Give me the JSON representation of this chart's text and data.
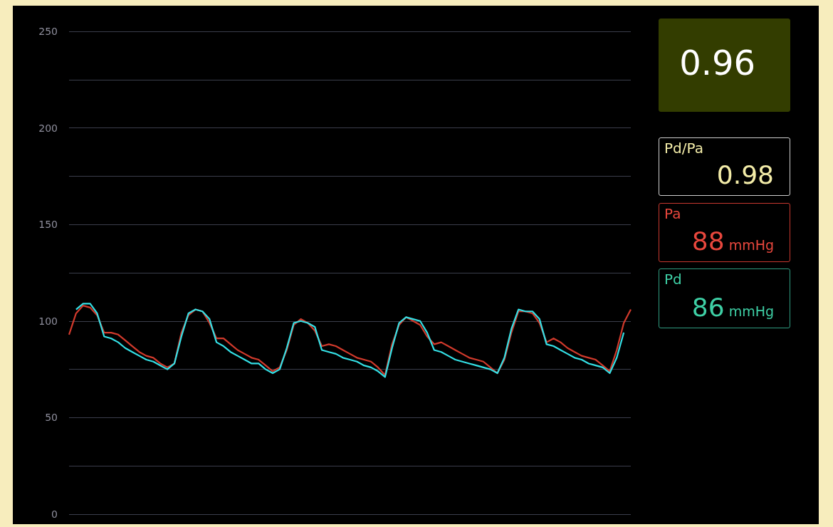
{
  "chart_data": [
    {
      "type": "line",
      "categories": [
        null,
        null,
        null,
        null,
        null,
        null,
        null,
        null,
        null,
        null,
        null,
        null,
        null,
        null,
        null,
        null,
        null,
        null,
        null,
        null,
        null,
        null,
        null,
        null,
        null,
        null,
        null,
        null,
        null,
        null,
        null,
        null,
        null,
        null,
        null,
        null,
        null,
        null,
        null,
        null,
        null,
        null,
        null,
        null,
        null,
        null,
        null,
        null,
        null,
        null,
        null,
        null,
        null,
        null,
        null,
        null,
        null,
        null,
        null,
        null,
        null,
        null,
        null,
        null,
        null,
        null,
        null,
        null,
        null,
        null,
        null,
        null,
        null,
        null,
        null,
        null,
        null,
        null,
        null,
        null,
        null
      ],
      "series": [
        {
          "color": "#d23a2c",
          "values": [
            93,
            104,
            108,
            107,
            103,
            94,
            94,
            93,
            90,
            87,
            84,
            82,
            81,
            78,
            76,
            78,
            94,
            103,
            106,
            105,
            99,
            91,
            91,
            88,
            85,
            83,
            81,
            80,
            77,
            74,
            76,
            85,
            98,
            101,
            99,
            95,
            87,
            88,
            87,
            85,
            83,
            81,
            80,
            79,
            76,
            72,
            88,
            98,
            102,
            100,
            98,
            92,
            88,
            89,
            87,
            85,
            83,
            81,
            80,
            79,
            76,
            73,
            80,
            94,
            105,
            105,
            104,
            99,
            89,
            91,
            89,
            86,
            84,
            82,
            81,
            80,
            77,
            74,
            85,
            99,
            106
          ]
        },
        {
          "color": "#34e0e6",
          "values": [
            null,
            106,
            109,
            109,
            104,
            92,
            91,
            89,
            86,
            84,
            82,
            80,
            79,
            77,
            75,
            78,
            92,
            104,
            106,
            105,
            101,
            89,
            87,
            84,
            82,
            80,
            78,
            78,
            75,
            73,
            75,
            86,
            99,
            100,
            99,
            97,
            85,
            84,
            83,
            81,
            80,
            79,
            77,
            76,
            74,
            71,
            86,
            99,
            102,
            101,
            100,
            94,
            85,
            84,
            82,
            80,
            79,
            78,
            77,
            76,
            75,
            73,
            81,
            96,
            106,
            105,
            105,
            101,
            88,
            87,
            85,
            83,
            81,
            80,
            78,
            77,
            76,
            73,
            81,
            94,
            null
          ]
        }
      ],
      "ylim": [
        0,
        250
      ],
      "yticks": [
        0,
        {
          "value": 25,
          "label": null
        },
        50,
        {
          "value": 75,
          "label": null
        },
        100,
        {
          "value": 125,
          "label": null
        },
        150,
        {
          "value": 175,
          "label": null
        },
        200,
        {
          "value": 225,
          "label": null
        },
        250
      ],
      "grid": "y",
      "tick_labels": "y",
      "marker": "none",
      "line_style": "solid"
    },
    {
      "type": "other",
      "annotations": [
        "0.96"
      ],
      "colors": [
        "#333d00",
        "#ffffff"
      ]
    },
    {
      "type": "other",
      "title": "Pd/Pa",
      "annotations": [
        "0.98"
      ],
      "colors": [
        "#cfcfcf",
        "#f3eca8"
      ]
    },
    {
      "type": "other",
      "title": "Pa",
      "annotations": [
        "88",
        "mmHg"
      ],
      "colors": [
        "#c8382f",
        "#e8473d"
      ]
    },
    {
      "type": "other",
      "title": "Pd",
      "annotations": [
        "86",
        "mmHg"
      ],
      "colors": [
        "#2f9c80",
        "#3ecfa5"
      ]
    }
  ]
}
